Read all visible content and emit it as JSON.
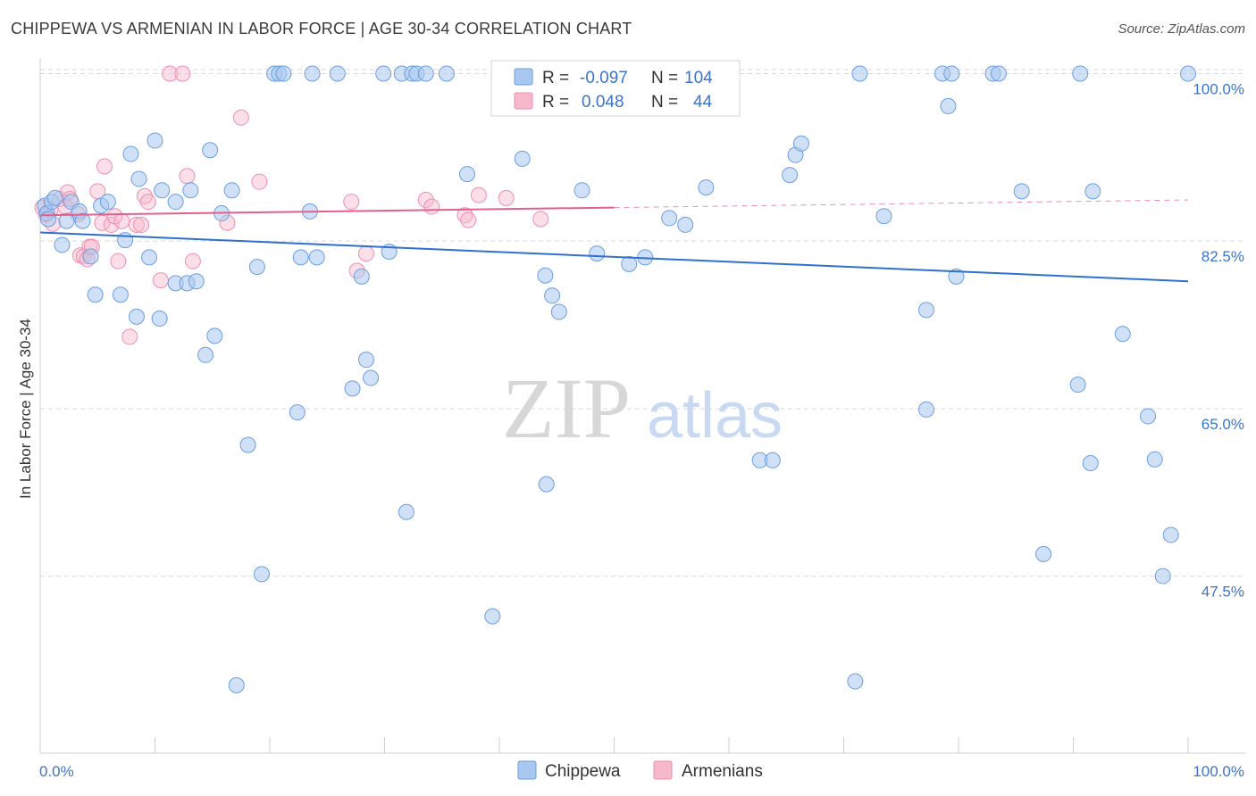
{
  "header": {
    "title": "CHIPPEWA VS ARMENIAN IN LABOR FORCE | AGE 30-34 CORRELATION CHART",
    "source": "Source: ZipAtlas.com"
  },
  "watermark": {
    "zip": "ZIP",
    "atlas": "atlas"
  },
  "colors": {
    "chippewa_fill": "#a9c8f0",
    "chippewa_stroke": "#6b9ee0",
    "chippewa_line": "#2f6fcf",
    "armenian_fill": "#f7b8cc",
    "armenian_stroke": "#ee8fae",
    "armenian_line": "#e0608e",
    "axis_text": "#3b74c8",
    "grid": "#d9d9d9"
  },
  "legend": {
    "rows": [
      {
        "r_label": "R =",
        "r_value": "-0.097",
        "n_label": "N =",
        "n_value": "104"
      },
      {
        "r_label": "R =",
        "r_value": "0.048",
        "n_label": "N =",
        "n_value": "44"
      }
    ]
  },
  "chart_data": {
    "type": "scatter",
    "title": "CHIPPEWA VS ARMENIAN IN LABOR FORCE | AGE 30-34 CORRELATION CHART",
    "xlabel": "",
    "ylabel": "In Labor Force | Age 30-34",
    "xlim": [
      0,
      100
    ],
    "ylim": [
      29,
      102
    ],
    "x_tick_labels": [
      "0.0%",
      "100.0%"
    ],
    "y_ticks": [
      47.5,
      65.0,
      82.5,
      100.0
    ],
    "y_tick_labels": [
      "47.5%",
      "65.0%",
      "82.5%",
      "100.0%"
    ],
    "grid": true,
    "legend_position": "bottom",
    "series": [
      {
        "name": "Chippewa",
        "color": "#a9c8f0",
        "trend": {
          "x": [
            0,
            100
          ],
          "y": [
            83.4,
            78.3
          ]
        },
        "points": [
          [
            0.4,
            86.2
          ],
          [
            0.6,
            85.4
          ],
          [
            0.7,
            84.8
          ],
          [
            1.0,
            86.6
          ],
          [
            1.3,
            87.0
          ],
          [
            1.9,
            82.1
          ],
          [
            2.3,
            84.6
          ],
          [
            2.7,
            86.6
          ],
          [
            3.4,
            85.6
          ],
          [
            3.7,
            84.6
          ],
          [
            4.4,
            80.9
          ],
          [
            4.8,
            76.9
          ],
          [
            5.3,
            86.2
          ],
          [
            5.9,
            86.6
          ],
          [
            7.0,
            76.9
          ],
          [
            7.4,
            82.6
          ],
          [
            7.9,
            91.6
          ],
          [
            8.4,
            74.6
          ],
          [
            8.6,
            89.0
          ],
          [
            9.5,
            80.8
          ],
          [
            10.0,
            93.0
          ],
          [
            10.4,
            74.4
          ],
          [
            10.6,
            87.8
          ],
          [
            11.8,
            78.1
          ],
          [
            11.8,
            86.6
          ],
          [
            12.8,
            78.1
          ],
          [
            13.1,
            87.8
          ],
          [
            13.6,
            78.3
          ],
          [
            14.4,
            70.6
          ],
          [
            14.8,
            92.0
          ],
          [
            15.2,
            72.6
          ],
          [
            15.8,
            85.4
          ],
          [
            16.7,
            87.8
          ],
          [
            17.1,
            36.1
          ],
          [
            18.1,
            61.2
          ],
          [
            18.9,
            79.8
          ],
          [
            19.3,
            47.7
          ],
          [
            20.4,
            100.0
          ],
          [
            20.8,
            100.0
          ],
          [
            21.2,
            100.0
          ],
          [
            22.4,
            64.6
          ],
          [
            22.7,
            80.8
          ],
          [
            23.5,
            85.6
          ],
          [
            23.7,
            100.0
          ],
          [
            24.1,
            80.8
          ],
          [
            25.9,
            100.0
          ],
          [
            27.2,
            67.1
          ],
          [
            28.0,
            78.8
          ],
          [
            28.4,
            70.1
          ],
          [
            28.8,
            68.2
          ],
          [
            29.9,
            100.0
          ],
          [
            30.4,
            81.4
          ],
          [
            31.5,
            100.0
          ],
          [
            31.9,
            54.2
          ],
          [
            32.4,
            100.0
          ],
          [
            32.8,
            100.0
          ],
          [
            33.6,
            100.0
          ],
          [
            35.4,
            100.0
          ],
          [
            37.2,
            89.5
          ],
          [
            39.4,
            43.3
          ],
          [
            42.0,
            91.1
          ],
          [
            44.0,
            78.9
          ],
          [
            44.1,
            57.1
          ],
          [
            44.6,
            76.8
          ],
          [
            45.2,
            75.1
          ],
          [
            47.2,
            87.8
          ],
          [
            48.5,
            81.2
          ],
          [
            49.6,
            100.0
          ],
          [
            50.2,
            100.0
          ],
          [
            51.3,
            80.1
          ],
          [
            52.1,
            100.0
          ],
          [
            52.7,
            80.8
          ],
          [
            54.8,
            84.9
          ],
          [
            56.2,
            84.2
          ],
          [
            58.0,
            88.1
          ],
          [
            59.1,
            100.0
          ],
          [
            60.0,
            100.0
          ],
          [
            62.7,
            59.6
          ],
          [
            63.8,
            59.6
          ],
          [
            65.3,
            89.4
          ],
          [
            65.8,
            91.5
          ],
          [
            66.3,
            92.7
          ],
          [
            71.0,
            36.5
          ],
          [
            71.4,
            100.0
          ],
          [
            73.5,
            85.1
          ],
          [
            77.2,
            75.3
          ],
          [
            77.2,
            64.9
          ],
          [
            78.6,
            100.0
          ],
          [
            79.1,
            96.6
          ],
          [
            79.4,
            100.0
          ],
          [
            79.8,
            78.8
          ],
          [
            83.0,
            100.0
          ],
          [
            83.5,
            100.0
          ],
          [
            85.5,
            87.7
          ],
          [
            87.4,
            49.8
          ],
          [
            90.4,
            67.5
          ],
          [
            90.6,
            100.0
          ],
          [
            91.5,
            59.3
          ],
          [
            91.7,
            87.7
          ],
          [
            94.3,
            72.8
          ],
          [
            96.5,
            64.2
          ],
          [
            97.1,
            59.7
          ],
          [
            97.8,
            47.5
          ],
          [
            98.5,
            51.8
          ],
          [
            100.0,
            100.0
          ]
        ]
      },
      {
        "name": "Armenians",
        "color": "#f7b8cc",
        "trend": {
          "x": [
            0,
            100
          ],
          "y": [
            85.2,
            86.8
          ]
        },
        "points": [
          [
            0.2,
            86.0
          ],
          [
            0.5,
            85.3
          ],
          [
            0.9,
            85.8
          ],
          [
            1.1,
            84.3
          ],
          [
            1.7,
            86.9
          ],
          [
            2.2,
            86.1
          ],
          [
            2.4,
            87.6
          ],
          [
            2.6,
            86.9
          ],
          [
            3.3,
            85.3
          ],
          [
            3.5,
            81.0
          ],
          [
            3.8,
            80.9
          ],
          [
            4.1,
            80.6
          ],
          [
            4.3,
            81.9
          ],
          [
            4.5,
            81.9
          ],
          [
            5.0,
            87.7
          ],
          [
            5.4,
            84.4
          ],
          [
            5.6,
            90.3
          ],
          [
            6.2,
            84.2
          ],
          [
            6.5,
            85.1
          ],
          [
            6.8,
            80.4
          ],
          [
            7.1,
            84.6
          ],
          [
            7.8,
            72.5
          ],
          [
            8.4,
            84.2
          ],
          [
            8.8,
            84.2
          ],
          [
            9.1,
            87.2
          ],
          [
            9.4,
            86.6
          ],
          [
            10.5,
            78.4
          ],
          [
            11.3,
            100.0
          ],
          [
            12.4,
            100.0
          ],
          [
            12.8,
            89.3
          ],
          [
            13.3,
            80.4
          ],
          [
            16.3,
            84.4
          ],
          [
            17.5,
            95.4
          ],
          [
            19.1,
            88.7
          ],
          [
            27.1,
            86.6
          ],
          [
            27.6,
            79.4
          ],
          [
            28.4,
            81.2
          ],
          [
            33.6,
            86.8
          ],
          [
            34.1,
            86.1
          ],
          [
            37.0,
            85.2
          ],
          [
            37.3,
            84.7
          ],
          [
            38.2,
            87.3
          ],
          [
            40.6,
            87.0
          ],
          [
            43.6,
            84.8
          ]
        ]
      }
    ]
  },
  "bottom_legend": {
    "items": [
      "Chippewa",
      "Armenians"
    ]
  }
}
